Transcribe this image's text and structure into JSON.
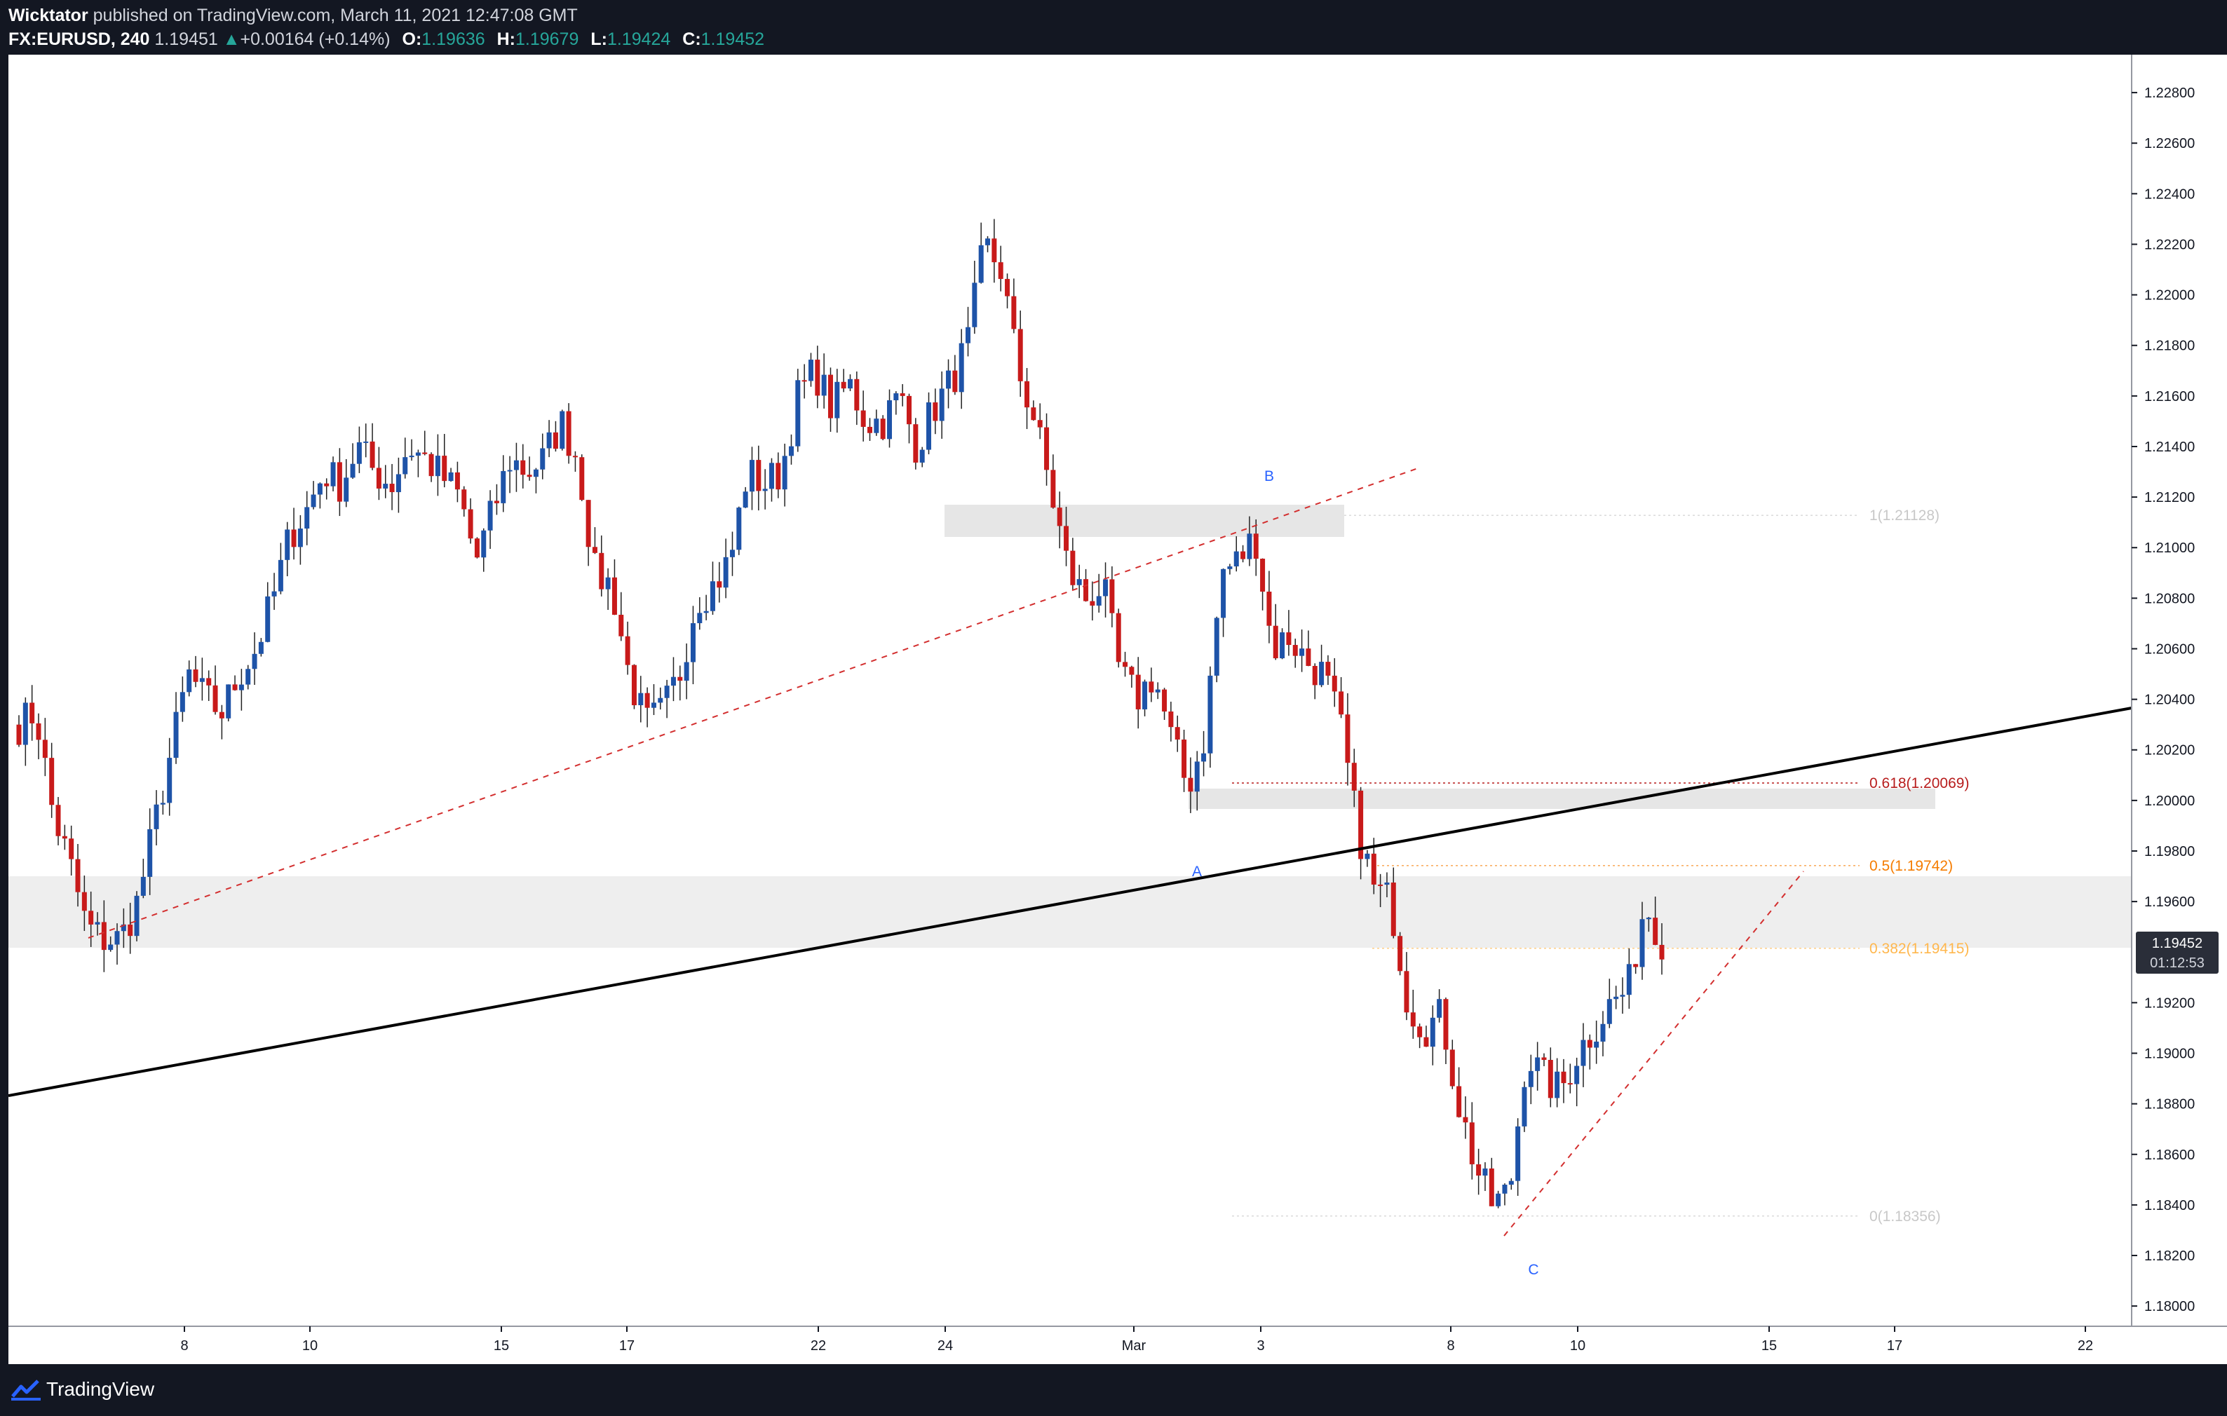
{
  "header": {
    "author": "Wicktator",
    "published_text": " published on TradingView.com, March 11, 2021 12:47:08 GMT",
    "symbol": "FX:EURUSD, 240",
    "last": "1.19451",
    "change_arrow": "▲",
    "change": "+0.00164 (+0.14%)",
    "open_label": "O:",
    "open": "1.19636",
    "high_label": "H:",
    "high": "1.19679",
    "low_label": "L:",
    "low": "1.19424",
    "close_label": "C:",
    "close": "1.19452"
  },
  "price_axis": {
    "labels": [
      "1.22800",
      "1.22600",
      "1.22400",
      "1.22200",
      "1.22000",
      "1.21800",
      "1.21600",
      "1.21400",
      "1.21200",
      "1.21000",
      "1.20800",
      "1.20600",
      "1.20400",
      "1.20200",
      "1.20000",
      "1.19800",
      "1.19600",
      "1.19200",
      "1.19000",
      "1.18800",
      "1.18600",
      "1.18400",
      "1.18200",
      "1.18000"
    ],
    "current_price": "1.19452",
    "countdown": "01:12:53"
  },
  "time_axis": {
    "labels": [
      "8",
      "10",
      "15",
      "17",
      "22",
      "24",
      "Mar",
      "3",
      "8",
      "10",
      "15",
      "17",
      "22"
    ]
  },
  "annotations": {
    "wave_a": "A",
    "wave_b": "B",
    "wave_c": "C",
    "fib_1": "1(1.21128)",
    "fib_618": "0.618(1.20069)",
    "fib_05": "0.5(1.19742)",
    "fib_382": "0.382(1.19415)",
    "fib_0": "0(1.18356)"
  },
  "colors": {
    "background": "#ffffff",
    "frame": "#131722",
    "bull": "#1e53a8",
    "bear": "#c81a1a",
    "fib_618": "#b71c1c",
    "fib_05": "#f57c00",
    "fib_382": "#ffb74d",
    "fib_grey": "#c8c8c8",
    "wave_label": "#2962ff",
    "trend_dashed": "#d32f2f"
  },
  "footer": {
    "brand": "TradingView"
  },
  "chart_data": {
    "type": "candlestick",
    "symbol": "EURUSD",
    "timeframe": "240",
    "ylim": [
      1.1792,
      1.2295
    ],
    "x_tick_labels": [
      "8",
      "10",
      "15",
      "17",
      "22",
      "24",
      "Mar",
      "3",
      "8",
      "10",
      "15",
      "17",
      "22"
    ],
    "fib_levels": [
      {
        "ratio": "1",
        "price": 1.21128
      },
      {
        "ratio": "0.618",
        "price": 1.20069
      },
      {
        "ratio": "0.5",
        "price": 1.19742
      },
      {
        "ratio": "0.382",
        "price": 1.19415
      },
      {
        "ratio": "0",
        "price": 1.18356
      }
    ],
    "waypoints": [
      1.203,
      1.2035,
      1.1995,
      1.1975,
      1.195,
      1.1945,
      1.1945,
      1.196,
      1.199,
      1.202,
      1.205,
      1.204,
      1.2035,
      1.205,
      1.206,
      1.208,
      1.2105,
      1.2115,
      1.213,
      1.2125,
      1.214,
      1.213,
      1.2125,
      1.214,
      1.2135,
      1.2128,
      1.212,
      1.2095,
      1.2115,
      1.2135,
      1.213,
      1.2135,
      1.215,
      1.2135,
      1.209,
      1.2085,
      1.205,
      1.203,
      1.2035,
      1.205,
      1.208,
      1.2085,
      1.2095,
      1.213,
      1.2125,
      1.213,
      1.216,
      1.217,
      1.2155,
      1.2165,
      1.215,
      1.215,
      1.216,
      1.214,
      1.2155,
      1.2165,
      1.218,
      1.222,
      1.221,
      1.217,
      1.215,
      1.212,
      1.209,
      1.208,
      1.2085,
      1.205,
      1.204,
      1.205,
      1.2025,
      1.2005,
      1.2025,
      1.209,
      1.2095,
      1.2105,
      1.206,
      1.2065,
      1.2055,
      1.205,
      1.203,
      1.199,
      1.1965,
      1.196,
      1.192,
      1.191,
      1.1915,
      1.188,
      1.1855,
      1.184,
      1.1845,
      1.19,
      1.189,
      1.1885,
      1.19,
      1.191,
      1.192,
      1.1925,
      1.196,
      1.1945
    ],
    "pivots": [
      {
        "label": "A",
        "price": 1.19742
      },
      {
        "label": "B",
        "price": 1.21128
      },
      {
        "label": "C",
        "price": 1.18356
      }
    ]
  }
}
